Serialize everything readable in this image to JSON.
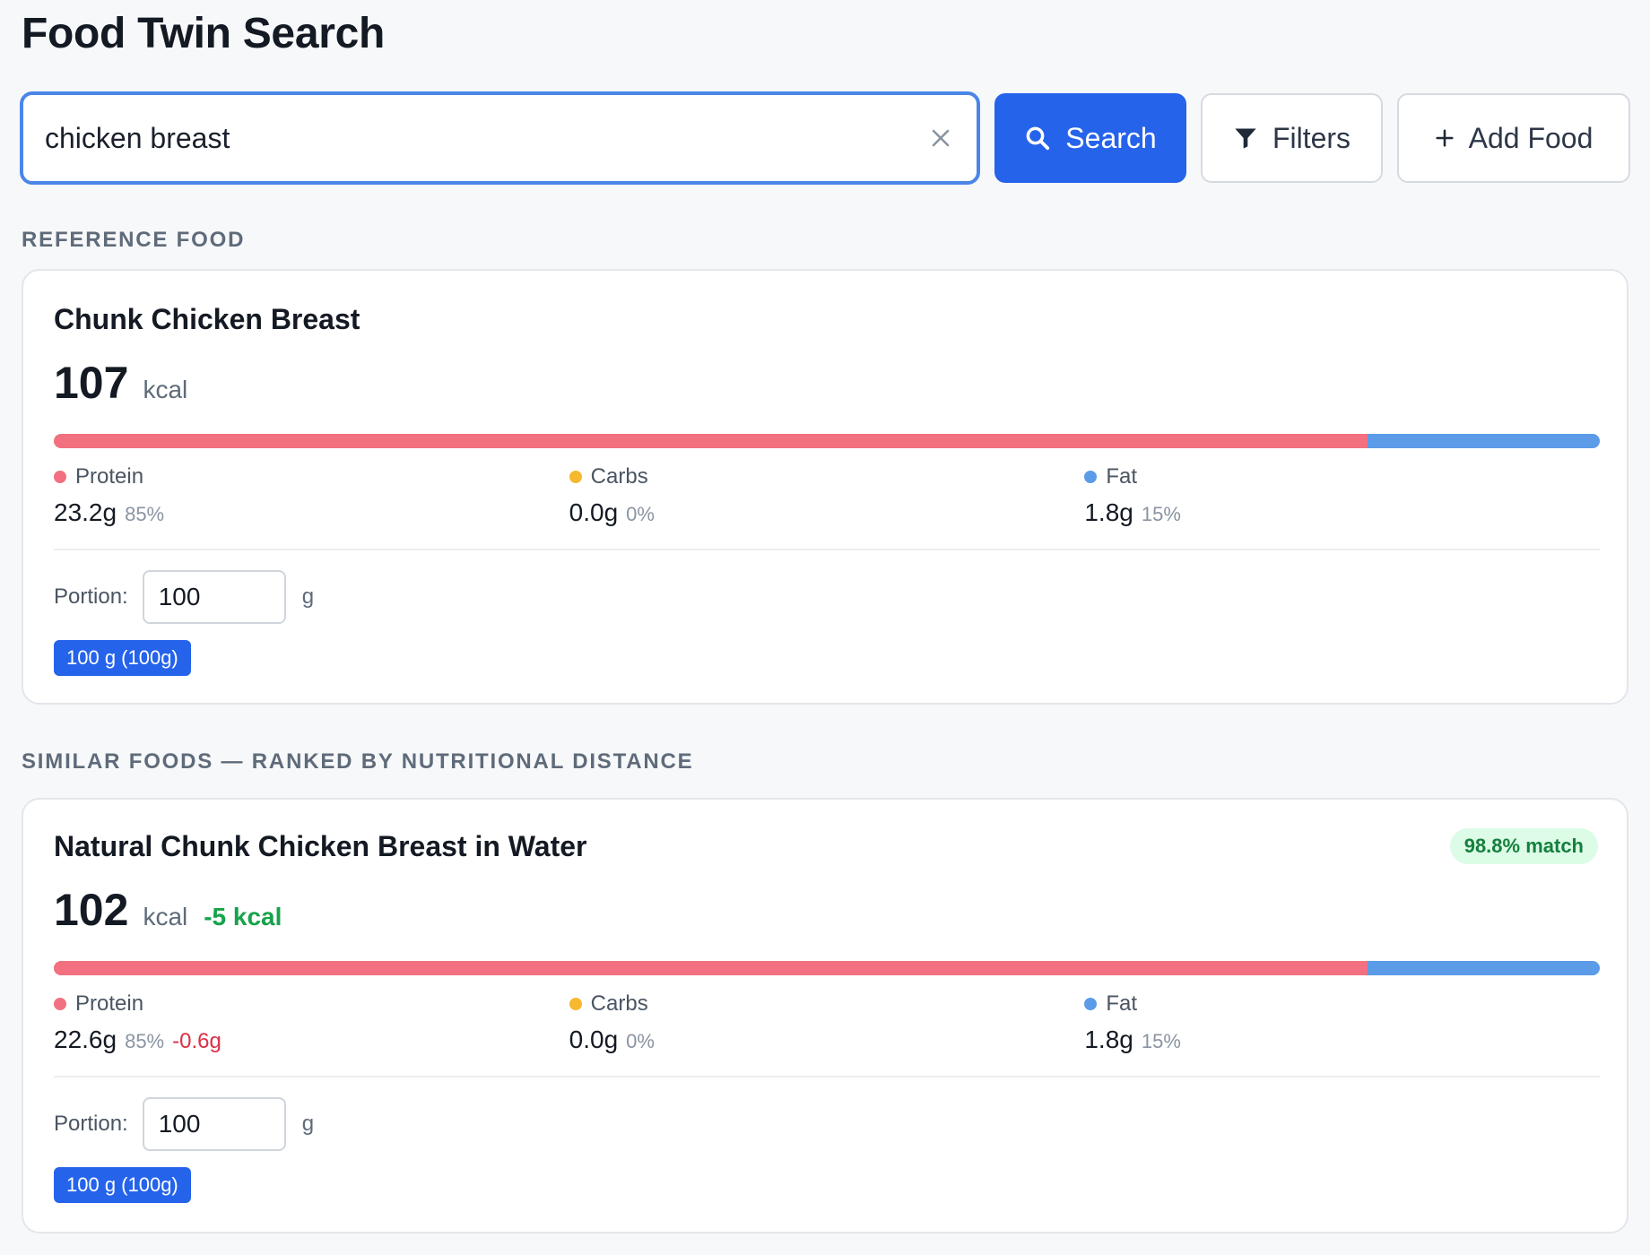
{
  "app": {
    "title": "Food Twin Search"
  },
  "search": {
    "value": "chicken breast",
    "placeholder": "",
    "search_label": "Search",
    "filters_label": "Filters",
    "add_food_label": "Add Food"
  },
  "icons": {
    "clear": "close-icon",
    "search": "search-icon",
    "filters": "filter-icon",
    "add": "plus-icon"
  },
  "colors": {
    "accent": "#2563eb",
    "protein": "#f2707f",
    "carbs": "#f6b82e",
    "fat": "#5b9be8",
    "match_bg": "#dcfce7",
    "match_text": "#15803d",
    "positive": "#16a34a",
    "negative": "#dc2f45"
  },
  "reference": {
    "section_label": "REFERENCE FOOD",
    "name": "Chunk Chicken Breast",
    "kcal": "107",
    "kcal_unit": "kcal",
    "macro_split": {
      "protein_pct": 85,
      "carbs_pct": 0,
      "fat_pct": 15
    },
    "macros": [
      {
        "label": "Protein",
        "value": "23.2g",
        "pct": "85%"
      },
      {
        "label": "Carbs",
        "value": "0.0g",
        "pct": "0%"
      },
      {
        "label": "Fat",
        "value": "1.8g",
        "pct": "15%"
      }
    ],
    "portion_label": "Portion:",
    "portion_value": "100",
    "portion_unit": "g",
    "serving_chip": "100 g (100g)"
  },
  "similar": {
    "section_label": "SIMILAR FOODS — RANKED BY NUTRITIONAL DISTANCE",
    "items": [
      {
        "name": "Natural Chunk Chicken Breast in Water",
        "match": "98.8% match",
        "kcal": "102",
        "kcal_unit": "kcal",
        "kcal_diff": "-5 kcal",
        "macro_split": {
          "protein_pct": 85,
          "carbs_pct": 0,
          "fat_pct": 15
        },
        "macros": [
          {
            "label": "Protein",
            "value": "22.6g",
            "pct": "85%",
            "diff": "-0.6g"
          },
          {
            "label": "Carbs",
            "value": "0.0g",
            "pct": "0%",
            "diff": ""
          },
          {
            "label": "Fat",
            "value": "1.8g",
            "pct": "15%",
            "diff": ""
          }
        ],
        "portion_label": "Portion:",
        "portion_value": "100",
        "portion_unit": "g",
        "serving_chip": "100 g (100g)"
      }
    ]
  }
}
